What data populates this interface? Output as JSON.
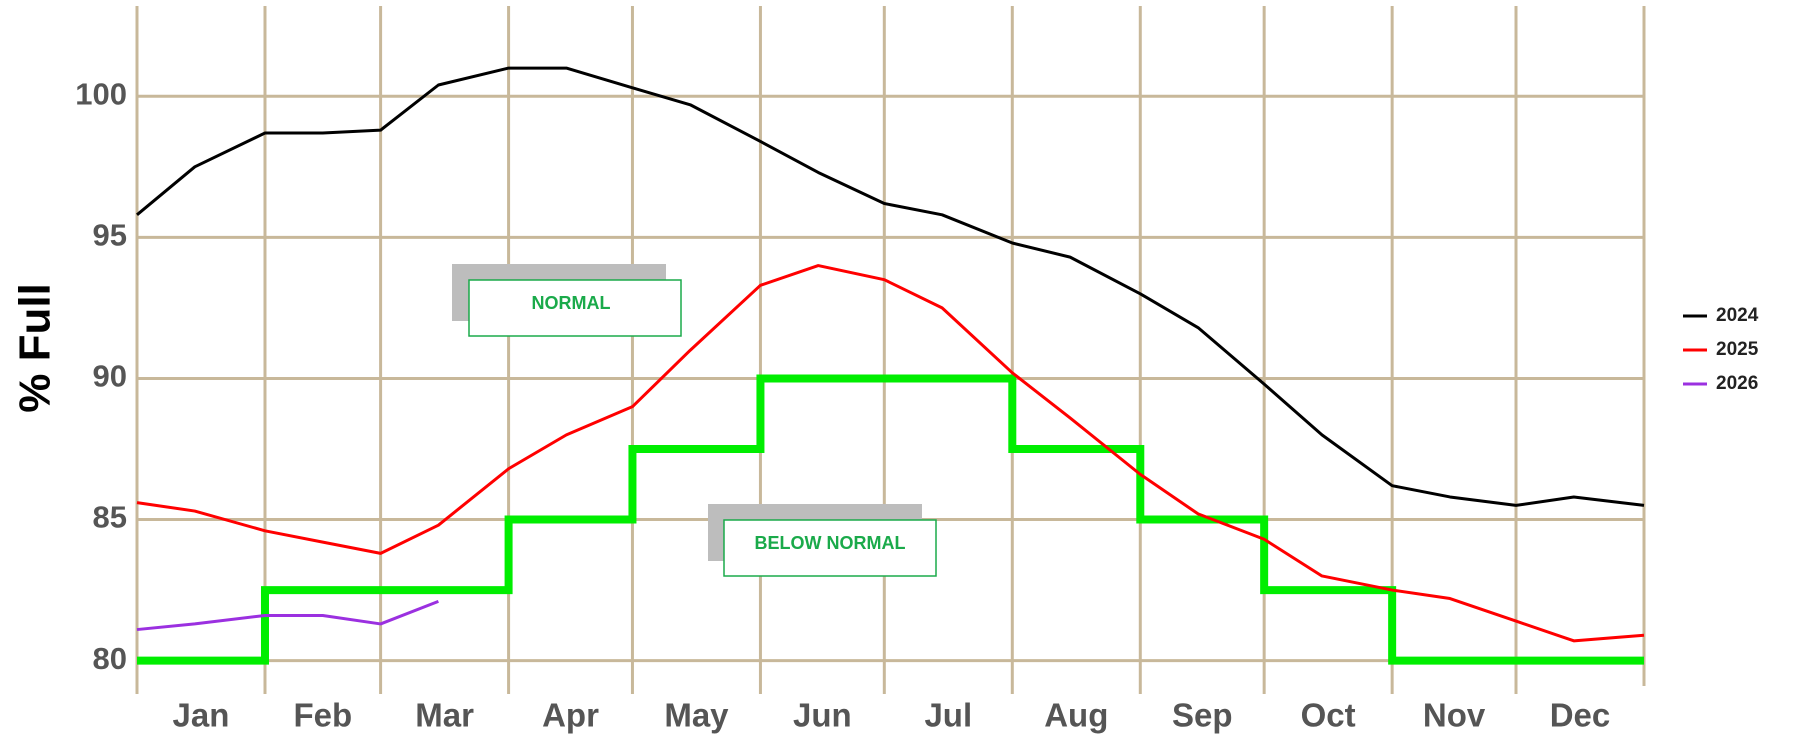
{
  "chart_data": {
    "type": "line",
    "y_label": "% Full",
    "annotations": [
      "NORMAL",
      "BELOW NORMAL"
    ],
    "xlim": [
      1,
      366
    ],
    "xticks": [
      {
        "value": 1,
        "label": "Jan"
      },
      {
        "value": 32,
        "label": "Feb"
      },
      {
        "value": 60,
        "label": "Mar"
      },
      {
        "value": 91,
        "label": "Apr"
      },
      {
        "value": 121,
        "label": "May"
      },
      {
        "value": 152,
        "label": "Jun"
      },
      {
        "value": 182,
        "label": "Jul"
      },
      {
        "value": 213,
        "label": "Aug"
      },
      {
        "value": 244,
        "label": "Sep"
      },
      {
        "value": 274,
        "label": "Oct"
      },
      {
        "value": 305,
        "label": "Nov"
      },
      {
        "value": 335,
        "label": "Dec"
      }
    ],
    "ylim": [
      79.1,
      103.2
    ],
    "yticks": [
      80,
      85,
      90,
      95,
      100
    ],
    "grid": true,
    "legend": "right",
    "x": [
      1,
      15,
      32,
      46,
      60,
      74,
      91,
      105,
      121,
      135,
      152,
      166,
      182,
      196,
      213,
      227,
      244,
      258,
      274,
      288,
      305,
      319,
      335,
      349,
      366
    ],
    "series": [
      {
        "name": "2024",
        "color": "#000000",
        "values": [
          95.8,
          97.5,
          98.7,
          98.7,
          98.8,
          100.4,
          101.0,
          101.0,
          100.3,
          99.7,
          98.4,
          97.3,
          96.2,
          95.8,
          94.8,
          94.3,
          93.0,
          91.8,
          89.8,
          88.0,
          86.2,
          85.8,
          85.5,
          85.8,
          85.5
        ]
      },
      {
        "name": "2025",
        "color": "#ff0000",
        "values": [
          85.6,
          85.3,
          84.6,
          84.2,
          83.8,
          84.8,
          86.8,
          88.0,
          89.0,
          91.0,
          93.3,
          94.0,
          93.5,
          92.5,
          90.2,
          88.6,
          86.6,
          85.2,
          84.3,
          83.0,
          82.5,
          82.2,
          81.4,
          80.7,
          80.9
        ]
      },
      {
        "name": "2026",
        "color": "#9b30e0",
        "values": [
          81.1,
          81.3,
          81.6,
          81.6,
          81.3,
          82.1,
          null,
          null,
          null,
          null,
          null,
          null,
          null,
          null,
          null,
          null,
          null,
          null,
          null,
          null,
          null,
          null,
          null,
          null,
          null
        ]
      }
    ],
    "threshold": {
      "color": "#00ee00",
      "step": true,
      "x": [
        1,
        32,
        60,
        91,
        121,
        152,
        182,
        213,
        244,
        274,
        305,
        335,
        366
      ],
      "values": [
        80,
        82.5,
        82.5,
        85,
        87.5,
        90,
        90,
        87.5,
        85,
        82.5,
        80,
        80,
        80
      ]
    }
  }
}
